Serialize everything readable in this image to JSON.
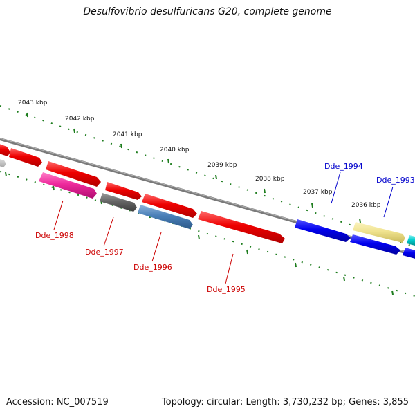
{
  "title": "Desulfovibrio desulfuricans G20, complete genome",
  "footer": {
    "accession": "Accession: NC_007519",
    "summary": "Topology: circular; Length: 3,730,232 bp; Genes: 3,855"
  },
  "ticks": [
    {
      "kbp": 2043,
      "label": "2043 kbp"
    },
    {
      "kbp": 2042,
      "label": "2042 kbp"
    },
    {
      "kbp": 2041,
      "label": "2041 kbp"
    },
    {
      "kbp": 2040,
      "label": "2040 kbp"
    },
    {
      "kbp": 2039,
      "label": "2039 kbp"
    },
    {
      "kbp": 2038,
      "label": "2038 kbp"
    },
    {
      "kbp": 2037,
      "label": "2037 kbp"
    },
    {
      "kbp": 2036,
      "label": "2036 kbp"
    }
  ],
  "colors": {
    "backbone": "#7a7a7a",
    "tick": "#1e7d1e",
    "label_red": "#cc0000",
    "label_blue": "#0000cc"
  },
  "labels": [
    {
      "text": "Dde_1998",
      "color": "#cc0000"
    },
    {
      "text": "Dde_1997",
      "color": "#cc0000"
    },
    {
      "text": "Dde_1996",
      "color": "#cc0000"
    },
    {
      "text": "Dde_1995",
      "color": "#cc0000"
    },
    {
      "text": "Dde_1994",
      "color": "#0000cc"
    },
    {
      "text": "Dde_1993",
      "color": "#0000cc"
    }
  ]
}
